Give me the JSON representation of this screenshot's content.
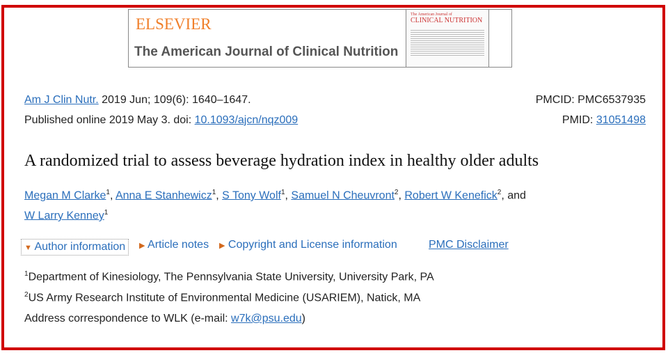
{
  "banner": {
    "publisher": "ELSEVIER",
    "journal": "The American Journal of Clinical Nutrition",
    "cover_title_small": "The American Journal of",
    "cover_title": "CLINICAL NUTRITION"
  },
  "citation": {
    "journal_abbr": "Am J Clin Nutr.",
    "details": " 2019 Jun; 109(6): 1640–1647.",
    "published": "Published online 2019 May 3. doi: ",
    "doi": "10.1093/ajcn/nqz009",
    "pmcid": "PMCID: PMC6537935",
    "pmid_label": "PMID: ",
    "pmid": "31051498"
  },
  "title": "A randomized trial to assess beverage hydration index in healthy older adults",
  "authors": [
    {
      "name": "Megan M Clarke",
      "sup": "1"
    },
    {
      "name": "Anna E Stanhewicz",
      "sup": "1"
    },
    {
      "name": "S Tony Wolf",
      "sup": "1"
    },
    {
      "name": "Samuel N Cheuvront",
      "sup": "2"
    },
    {
      "name": "Robert W Kenefick",
      "sup": "2"
    },
    {
      "name": "W Larry Kenney",
      "sup": "1"
    }
  ],
  "and": " and",
  "toggles": {
    "author_info": "Author information",
    "article_notes": "Article notes",
    "copyright": "Copyright and License information",
    "disclaimer": "PMC Disclaimer"
  },
  "affiliations": [
    {
      "sup": "1",
      "text": "Department of Kinesiology, The Pennsylvania State University, University Park, PA"
    },
    {
      "sup": "2",
      "text": "US Army Research Institute of Environmental Medicine (USARIEM), Natick, MA"
    }
  ],
  "correspondence": {
    "prefix": "Address correspondence to WLK (e-mail: ",
    "email": "w7k@psu.edu",
    "suffix": ")"
  }
}
